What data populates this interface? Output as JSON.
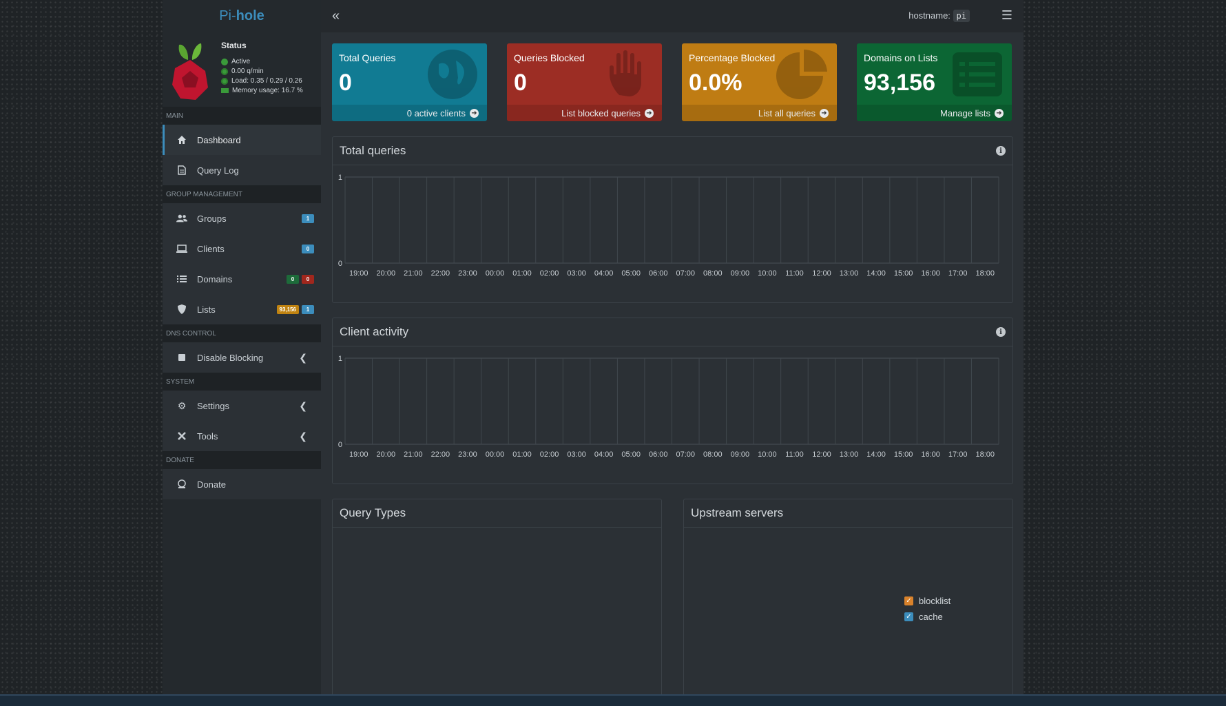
{
  "brand": {
    "prefix": "Pi-",
    "suffix": "hole"
  },
  "status": {
    "title": "Status",
    "active": "Active",
    "rate": "0.00 q/min",
    "load": "Load: 0.35 / 0.29 / 0.26",
    "memory": "Memory usage: 16.7 %"
  },
  "topbar": {
    "hostname_label": "hostname:",
    "hostname_value": "pi"
  },
  "sidebar": {
    "headers": {
      "main": "MAIN",
      "group": "GROUP MANAGEMENT",
      "dns": "DNS CONTROL",
      "system": "SYSTEM",
      "donate": "DONATE"
    },
    "items": {
      "dashboard": "Dashboard",
      "querylog": "Query Log",
      "groups": "Groups",
      "clients": "Clients",
      "domains": "Domains",
      "lists": "Lists",
      "disable": "Disable Blocking",
      "settings": "Settings",
      "tools": "Tools",
      "donate": "Donate"
    },
    "badges": {
      "groups": "1",
      "clients": "0",
      "domains_allow": "0",
      "domains_deny": "0",
      "lists_domains": "93,156",
      "lists_count": "1"
    }
  },
  "stats": {
    "total": {
      "label": "Total Queries",
      "value": "0",
      "footer": "0 active clients"
    },
    "blocked": {
      "label": "Queries Blocked",
      "value": "0",
      "footer": "List blocked queries"
    },
    "percent": {
      "label": "Percentage Blocked",
      "value": "0.0%",
      "footer": "List all queries"
    },
    "domains": {
      "label": "Domains on Lists",
      "value": "93,156",
      "footer": "Manage lists"
    }
  },
  "panels": {
    "total_queries": "Total queries",
    "client_activity": "Client activity",
    "query_types": "Query Types",
    "upstream": "Upstream servers"
  },
  "legend": {
    "blocklist": "blocklist",
    "cache": "cache"
  },
  "colors": {
    "blocklist": "#d9822b",
    "cache": "#3c8dbc"
  },
  "chart_data": [
    {
      "type": "line",
      "title": "Total queries",
      "x": [
        "19:00",
        "20:00",
        "21:00",
        "22:00",
        "23:00",
        "00:00",
        "01:00",
        "02:00",
        "03:00",
        "04:00",
        "05:00",
        "06:00",
        "07:00",
        "08:00",
        "09:00",
        "10:00",
        "11:00",
        "12:00",
        "13:00",
        "14:00",
        "15:00",
        "16:00",
        "17:00",
        "18:00"
      ],
      "y_ticks": [
        "0",
        "1"
      ],
      "ylim": [
        0,
        1
      ],
      "series": []
    },
    {
      "type": "line",
      "title": "Client activity",
      "x": [
        "19:00",
        "20:00",
        "21:00",
        "22:00",
        "23:00",
        "00:00",
        "01:00",
        "02:00",
        "03:00",
        "04:00",
        "05:00",
        "06:00",
        "07:00",
        "08:00",
        "09:00",
        "10:00",
        "11:00",
        "12:00",
        "13:00",
        "14:00",
        "15:00",
        "16:00",
        "17:00",
        "18:00"
      ],
      "y_ticks": [
        "0",
        "1"
      ],
      "ylim": [
        0,
        1
      ],
      "series": []
    }
  ]
}
